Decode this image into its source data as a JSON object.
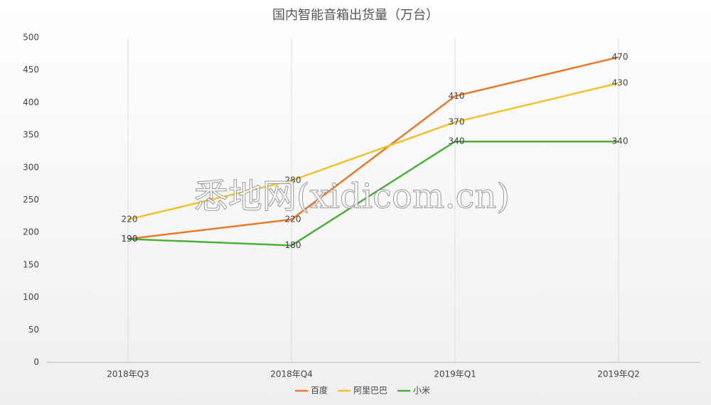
{
  "chart_data": {
    "type": "line",
    "title": "国内智能音箱出货量（万台）",
    "categories": [
      "2018年Q3",
      "2018年Q4",
      "2019年Q1",
      "2019年Q2"
    ],
    "series": [
      {
        "name": "百度",
        "color": "#e8792a",
        "values": [
          190,
          220,
          410,
          470
        ]
      },
      {
        "name": "阿里巴巴",
        "color": "#f2c12e",
        "values": [
          220,
          280,
          370,
          430
        ]
      },
      {
        "name": "小米",
        "color": "#4caf3c",
        "values": [
          190,
          180,
          340,
          340
        ]
      }
    ],
    "ylim": [
      0,
      500
    ],
    "yticks": [
      0,
      50,
      100,
      150,
      200,
      250,
      300,
      350,
      400,
      450,
      500
    ],
    "grid": true,
    "legend": "bottom",
    "watermark": "悉地网(xidicom.cn)"
  }
}
